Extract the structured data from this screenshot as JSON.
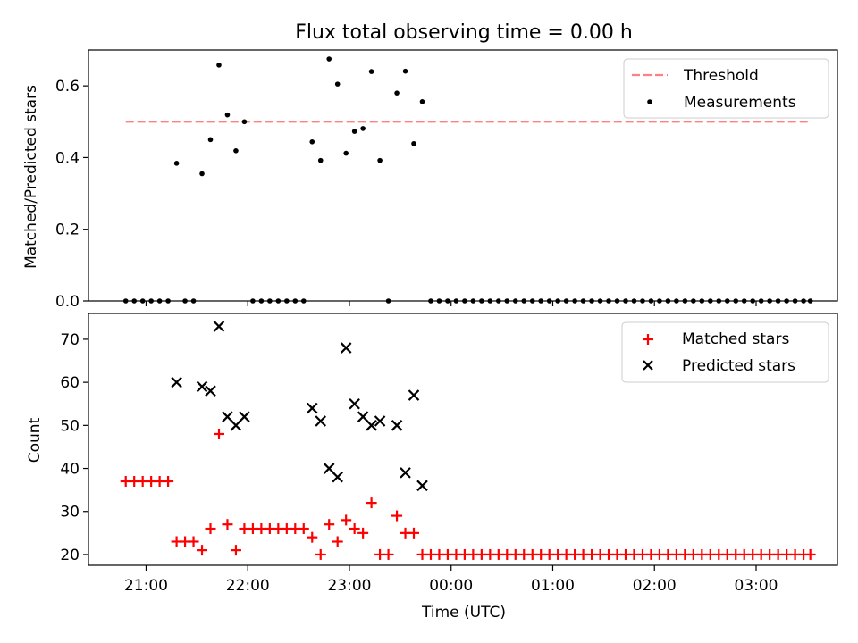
{
  "chart_data": [
    {
      "type": "scatter",
      "title": "Flux total observing time = 0.00 h",
      "xlabel": "",
      "ylabel": "Matched/Predicted stars",
      "ylim": [
        0,
        0.7
      ],
      "yticks": [
        "0.0",
        "0.2",
        "0.4",
        "0.6"
      ],
      "legend": "top-right",
      "threshold": {
        "name": "Threshold",
        "value": 0.5,
        "x_start": "20:48",
        "x_end": "03:32",
        "color": "#ff8080"
      },
      "series": [
        {
          "name": "Measurements",
          "color": "#000000",
          "points": [
            [
              "20:48",
              0
            ],
            [
              "20:53",
              0
            ],
            [
              "20:58",
              0
            ],
            [
              "21:03",
              0
            ],
            [
              "21:08",
              0
            ],
            [
              "21:13",
              0
            ],
            [
              "21:18",
              0.384
            ],
            [
              "21:23",
              0
            ],
            [
              "21:28",
              0
            ],
            [
              "21:33",
              0.355
            ],
            [
              "21:38",
              0.45
            ],
            [
              "21:43",
              0.658
            ],
            [
              "21:48",
              0.519
            ],
            [
              "21:53",
              0.419
            ],
            [
              "21:58",
              0.5
            ],
            [
              "22:03",
              0
            ],
            [
              "22:08",
              0
            ],
            [
              "22:13",
              0
            ],
            [
              "22:18",
              0
            ],
            [
              "22:23",
              0
            ],
            [
              "22:28",
              0
            ],
            [
              "22:33",
              0
            ],
            [
              "22:38",
              0.444
            ],
            [
              "22:43",
              0.392
            ],
            [
              "22:48",
              0.675
            ],
            [
              "22:53",
              0.605
            ],
            [
              "22:58",
              0.412
            ],
            [
              "23:03",
              0.473
            ],
            [
              "23:08",
              0.481
            ],
            [
              "23:13",
              0.64
            ],
            [
              "23:18",
              0.392
            ],
            [
              "23:23",
              0
            ],
            [
              "23:28",
              0.58
            ],
            [
              "23:33",
              0.641
            ],
            [
              "23:38",
              0.439
            ],
            [
              "23:43",
              0.556
            ],
            [
              "23:48",
              0
            ],
            [
              "23:53",
              0
            ],
            [
              "23:58",
              0
            ],
            [
              "00:03",
              0
            ],
            [
              "00:08",
              0
            ],
            [
              "00:13",
              0
            ],
            [
              "00:18",
              0
            ],
            [
              "00:23",
              0
            ],
            [
              "00:28",
              0
            ],
            [
              "00:33",
              0
            ],
            [
              "00:38",
              0
            ],
            [
              "00:43",
              0
            ],
            [
              "00:48",
              0
            ],
            [
              "00:53",
              0
            ],
            [
              "00:58",
              0
            ],
            [
              "01:03",
              0
            ],
            [
              "01:08",
              0
            ],
            [
              "01:13",
              0
            ],
            [
              "01:18",
              0
            ],
            [
              "01:23",
              0
            ],
            [
              "01:28",
              0
            ],
            [
              "01:33",
              0
            ],
            [
              "01:38",
              0
            ],
            [
              "01:43",
              0
            ],
            [
              "01:48",
              0
            ],
            [
              "01:53",
              0
            ],
            [
              "01:58",
              0
            ],
            [
              "02:03",
              0
            ],
            [
              "02:08",
              0
            ],
            [
              "02:13",
              0
            ],
            [
              "02:18",
              0
            ],
            [
              "02:23",
              0
            ],
            [
              "02:28",
              0
            ],
            [
              "02:33",
              0
            ],
            [
              "02:38",
              0
            ],
            [
              "02:43",
              0
            ],
            [
              "02:48",
              0
            ],
            [
              "02:53",
              0
            ],
            [
              "02:58",
              0
            ],
            [
              "03:03",
              0
            ],
            [
              "03:08",
              0
            ],
            [
              "03:13",
              0
            ],
            [
              "03:18",
              0
            ],
            [
              "03:23",
              0
            ],
            [
              "03:28",
              0
            ],
            [
              "03:32",
              0
            ]
          ]
        }
      ]
    },
    {
      "type": "scatter",
      "title": "",
      "xlabel": "Time (UTC)",
      "ylabel": "Count",
      "ylim": [
        17.5,
        76
      ],
      "yticks": [
        "20",
        "30",
        "40",
        "50",
        "60",
        "70"
      ],
      "xticks": [
        "21:00",
        "22:00",
        "23:00",
        "00:00",
        "01:00",
        "02:00",
        "03:00"
      ],
      "xlim": [
        "20:26",
        "03:48"
      ],
      "legend": "top-right",
      "series": [
        {
          "name": "Matched stars",
          "color": "#ff0000",
          "marker": "+",
          "points": [
            [
              "20:48",
              37
            ],
            [
              "20:53",
              37
            ],
            [
              "20:58",
              37
            ],
            [
              "21:03",
              37
            ],
            [
              "21:08",
              37
            ],
            [
              "21:13",
              37
            ],
            [
              "21:18",
              23
            ],
            [
              "21:23",
              23
            ],
            [
              "21:28",
              23
            ],
            [
              "21:33",
              21
            ],
            [
              "21:38",
              26
            ],
            [
              "21:43",
              48
            ],
            [
              "21:48",
              27
            ],
            [
              "21:53",
              21
            ],
            [
              "21:58",
              26
            ],
            [
              "22:03",
              26
            ],
            [
              "22:08",
              26
            ],
            [
              "22:13",
              26
            ],
            [
              "22:18",
              26
            ],
            [
              "22:23",
              26
            ],
            [
              "22:28",
              26
            ],
            [
              "22:33",
              26
            ],
            [
              "22:38",
              24
            ],
            [
              "22:43",
              20
            ],
            [
              "22:48",
              27
            ],
            [
              "22:53",
              23
            ],
            [
              "22:58",
              28
            ],
            [
              "23:03",
              26
            ],
            [
              "23:08",
              25
            ],
            [
              "23:13",
              32
            ],
            [
              "23:18",
              20
            ],
            [
              "23:23",
              20
            ],
            [
              "23:28",
              29
            ],
            [
              "23:33",
              25
            ],
            [
              "23:38",
              25
            ],
            [
              "23:43",
              20
            ],
            [
              "23:48",
              20
            ],
            [
              "23:53",
              20
            ],
            [
              "23:58",
              20
            ],
            [
              "00:03",
              20
            ],
            [
              "00:08",
              20
            ],
            [
              "00:13",
              20
            ],
            [
              "00:18",
              20
            ],
            [
              "00:23",
              20
            ],
            [
              "00:28",
              20
            ],
            [
              "00:33",
              20
            ],
            [
              "00:38",
              20
            ],
            [
              "00:43",
              20
            ],
            [
              "00:48",
              20
            ],
            [
              "00:53",
              20
            ],
            [
              "00:58",
              20
            ],
            [
              "01:03",
              20
            ],
            [
              "01:08",
              20
            ],
            [
              "01:13",
              20
            ],
            [
              "01:18",
              20
            ],
            [
              "01:23",
              20
            ],
            [
              "01:28",
              20
            ],
            [
              "01:33",
              20
            ],
            [
              "01:38",
              20
            ],
            [
              "01:43",
              20
            ],
            [
              "01:48",
              20
            ],
            [
              "01:53",
              20
            ],
            [
              "01:58",
              20
            ],
            [
              "02:03",
              20
            ],
            [
              "02:08",
              20
            ],
            [
              "02:13",
              20
            ],
            [
              "02:18",
              20
            ],
            [
              "02:23",
              20
            ],
            [
              "02:28",
              20
            ],
            [
              "02:33",
              20
            ],
            [
              "02:38",
              20
            ],
            [
              "02:43",
              20
            ],
            [
              "02:48",
              20
            ],
            [
              "02:53",
              20
            ],
            [
              "02:58",
              20
            ],
            [
              "03:03",
              20
            ],
            [
              "03:08",
              20
            ],
            [
              "03:13",
              20
            ],
            [
              "03:18",
              20
            ],
            [
              "03:23",
              20
            ],
            [
              "03:28",
              20
            ],
            [
              "03:32",
              20
            ]
          ]
        },
        {
          "name": "Predicted stars",
          "color": "#000000",
          "marker": "x",
          "points": [
            [
              "21:18",
              60
            ],
            [
              "21:33",
              59
            ],
            [
              "21:38",
              58
            ],
            [
              "21:43",
              73
            ],
            [
              "21:48",
              52
            ],
            [
              "21:53",
              50
            ],
            [
              "21:58",
              52
            ],
            [
              "22:38",
              54
            ],
            [
              "22:43",
              51
            ],
            [
              "22:48",
              40
            ],
            [
              "22:53",
              38
            ],
            [
              "22:58",
              68
            ],
            [
              "23:03",
              55
            ],
            [
              "23:08",
              52
            ],
            [
              "23:13",
              50
            ],
            [
              "23:18",
              51
            ],
            [
              "23:28",
              50
            ],
            [
              "23:33",
              39
            ],
            [
              "23:38",
              57
            ],
            [
              "23:43",
              36
            ]
          ]
        }
      ]
    }
  ]
}
